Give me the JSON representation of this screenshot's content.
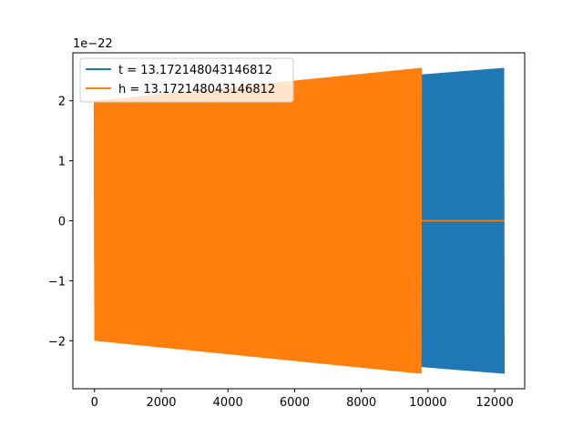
{
  "chart_data": {
    "type": "line",
    "title": "",
    "xlabel": "",
    "ylabel": "",
    "y_scale_label": "1e−22",
    "xlim": [
      -650,
      12900
    ],
    "ylim": [
      -2.8,
      2.8
    ],
    "x_ticks": [
      0,
      2000,
      4000,
      6000,
      8000,
      10000,
      12000
    ],
    "x_tick_labels": [
      "0",
      "2000",
      "4000",
      "6000",
      "8000",
      "10000",
      "12000"
    ],
    "y_ticks": [
      -2,
      -1,
      0,
      1,
      2
    ],
    "y_tick_labels": [
      "−2",
      "−1",
      "0",
      "1",
      "2"
    ],
    "grid": false,
    "legend_position": "top-left",
    "series": [
      {
        "name": "t = 13.172148043146812",
        "color": "#1f77b4",
        "shape": "oscillating waveform with growing amplitude",
        "x_start": 0,
        "x_end": 12288,
        "amplitude_start": 2.0,
        "amplitude_end": 2.55,
        "note_values_in_units_of": "1e-22"
      },
      {
        "name": "h = 13.172148043146812",
        "color": "#ff7f0e",
        "shape": "oscillating waveform with growing amplitude, then flat zero",
        "x_start": 0,
        "x_end": 9800,
        "amplitude_start": 2.0,
        "amplitude_end": 2.55,
        "flat_zero_from": 9800,
        "flat_zero_to": 12288
      }
    ]
  }
}
